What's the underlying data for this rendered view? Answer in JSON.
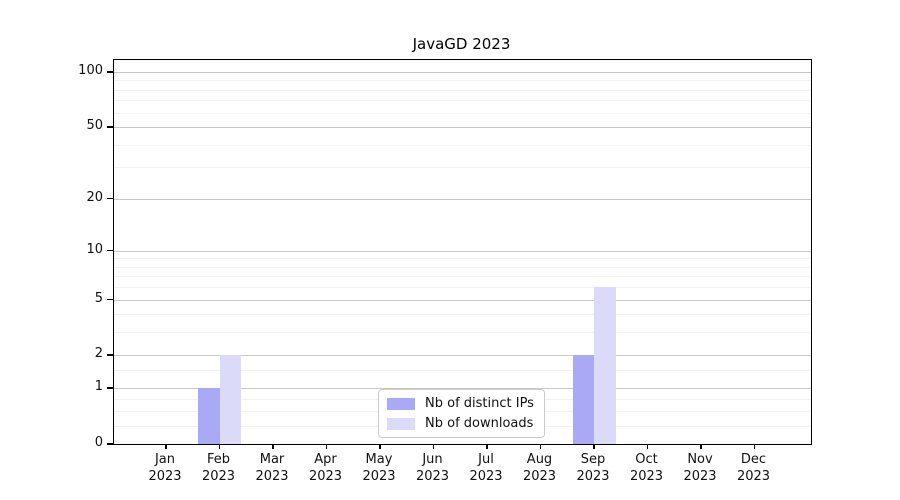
{
  "chart_data": {
    "type": "bar",
    "title": "JavaGD 2023",
    "year": "2023",
    "months": [
      "Jan",
      "Feb",
      "Mar",
      "Apr",
      "May",
      "Jun",
      "Jul",
      "Aug",
      "Sep",
      "Oct",
      "Nov",
      "Dec"
    ],
    "series": [
      {
        "name": "Nb of distinct IPs",
        "color": "#a9a9f6",
        "values": [
          0,
          1,
          0,
          0,
          0,
          0,
          0,
          0,
          2,
          0,
          0,
          0
        ]
      },
      {
        "name": "Nb of downloads",
        "color": "#dbdbf9",
        "values": [
          0,
          2,
          0,
          0,
          0,
          0,
          0,
          0,
          6,
          0,
          0,
          0
        ]
      }
    ],
    "y_axis": {
      "scale": "log10(1+x)",
      "major_ticks": [
        0,
        1,
        2,
        5,
        10,
        20,
        50,
        100
      ],
      "minor_ticks": [
        0.25,
        0.5,
        0.75,
        1.5,
        3,
        4,
        6,
        7,
        8,
        9,
        30,
        40,
        60,
        70,
        80,
        90
      ],
      "max": 100
    },
    "legend_position": "bottom-center-inside",
    "grid": true
  },
  "colors": {
    "major_grid": "#c9c9c9",
    "minor_grid": "#f2f2f2",
    "axis": "#000000",
    "legend_border": "#cccccc"
  }
}
